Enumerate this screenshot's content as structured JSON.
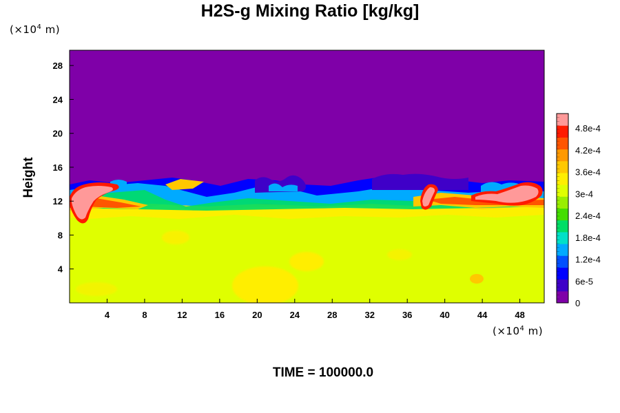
{
  "chart_data": {
    "type": "heatmap",
    "title": "H2S-g Mixing Ratio [kg/kg]",
    "ylabel": "Height",
    "y_unit": {
      "prefix": "(×10",
      "exp": "4",
      "suffix": " m)"
    },
    "x_unit": {
      "prefix": "(×10",
      "exp": "4",
      "suffix": " m)"
    },
    "x_ticks": [
      "4",
      "8",
      "12",
      "16",
      "20",
      "24",
      "28",
      "32",
      "36",
      "40",
      "44",
      "48"
    ],
    "x_tick_values": [
      4,
      8,
      12,
      16,
      20,
      24,
      28,
      32,
      36,
      40,
      44,
      48
    ],
    "xlim": [
      0,
      50.6
    ],
    "y_ticks": [
      "4",
      "8",
      "12",
      "16",
      "20",
      "24",
      "28"
    ],
    "y_tick_values": [
      4,
      8,
      12,
      16,
      20,
      24,
      28
    ],
    "ylim": [
      0,
      29.8
    ],
    "colorbar": {
      "labels": [
        "0",
        "6e-5",
        "1.2e-4",
        "1.8e-4",
        "2.4e-4",
        "3e-4",
        "3.6e-4",
        "4.2e-4",
        "4.8e-4"
      ],
      "label_values": [
        0,
        6e-05,
        0.00012,
        0.00018,
        0.00024,
        0.0003,
        0.00036,
        0.00042,
        0.00048
      ],
      "range": [
        0,
        0.00052
      ],
      "colors": [
        "#7f00a8",
        "#3f00c8",
        "#0000ff",
        "#0050ff",
        "#00aaff",
        "#00e0c8",
        "#00dd66",
        "#44dd00",
        "#99ee00",
        "#dfff00",
        "#ffee00",
        "#ffc800",
        "#ff9900",
        "#ff5500",
        "#ff1a00",
        "#ff9999"
      ]
    },
    "field_summary": {
      "upper_layer_value": 0,
      "lower_layer_value": 0.00033,
      "boundary_height_range": [
        11,
        15
      ],
      "pockets_max_value": 0.00052
    },
    "time_label": "TIME = 100000.0"
  }
}
